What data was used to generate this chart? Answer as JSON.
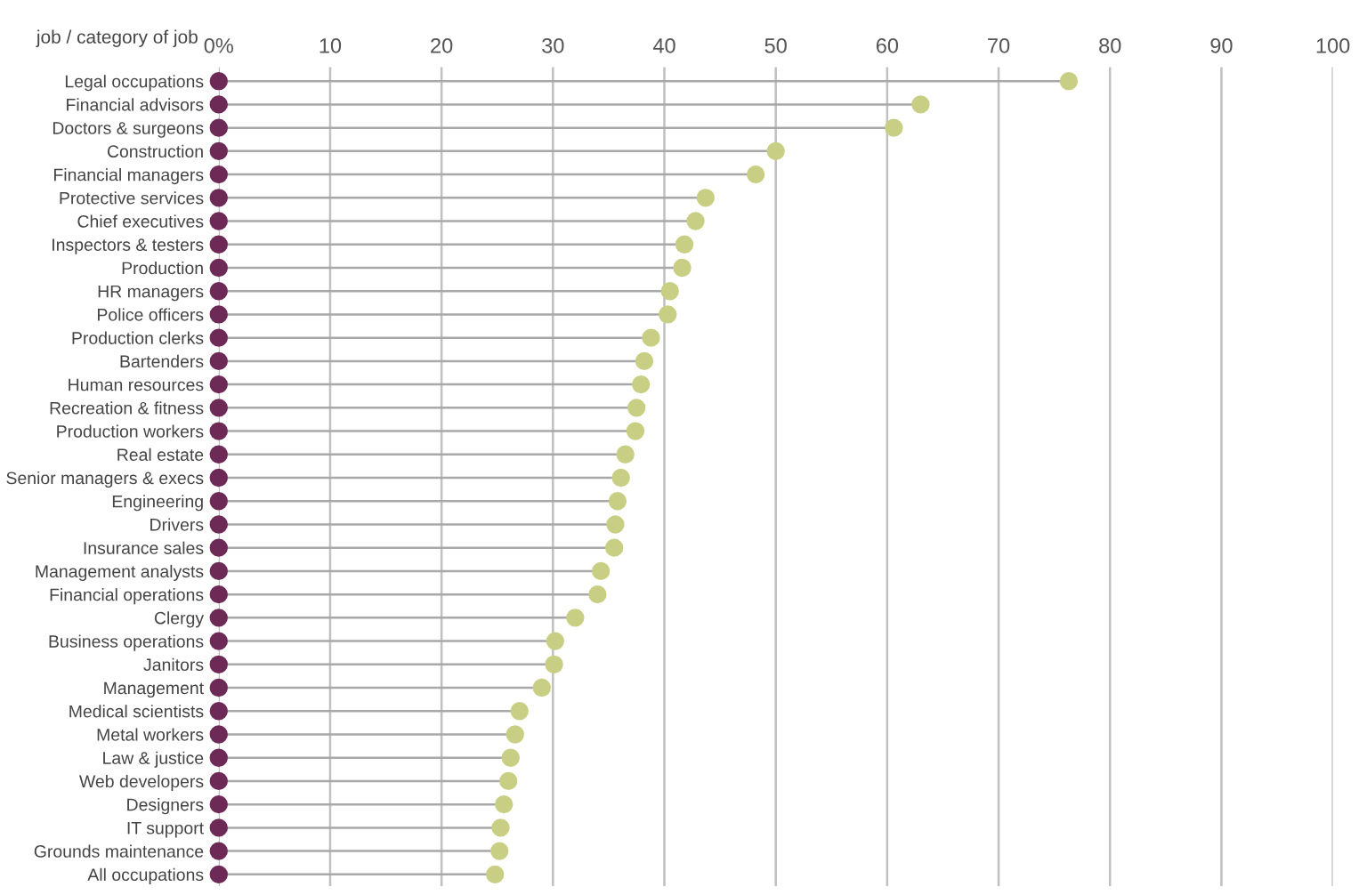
{
  "chart_data": {
    "type": "lollipop",
    "orientation": "horizontal",
    "ylabel": "job / category of job",
    "categories": [
      "Legal occupations",
      "Financial advisors",
      "Doctors & surgeons",
      "Construction",
      "Financial managers",
      "Protective services",
      "Chief executives",
      "Inspectors & testers",
      "Production",
      "HR managers",
      "Police officers",
      "Production clerks",
      "Bartenders",
      "Human resources",
      "Recreation & fitness",
      "Production workers",
      "Real estate",
      "Senior managers & execs",
      "Engineering",
      "Drivers",
      "Insurance sales",
      "Management analysts",
      "Financial operations",
      "Clergy",
      "Business operations",
      "Janitors",
      "Management",
      "Medical scientists",
      "Metal workers",
      "Law & justice",
      "Web developers",
      "Designers",
      "IT support",
      "Grounds maintenance",
      "All occupations"
    ],
    "series": [
      {
        "color": "#c8cf84",
        "values": [
          76.3,
          63.0,
          60.6,
          50.0,
          48.2,
          43.7,
          42.8,
          41.8,
          41.6,
          40.5,
          40.3,
          38.8,
          38.2,
          37.9,
          37.5,
          37.4,
          36.5,
          36.1,
          35.8,
          35.6,
          35.5,
          34.3,
          34.0,
          32.0,
          30.2,
          30.1,
          29.0,
          27.0,
          26.6,
          26.2,
          26.0,
          25.6,
          25.3,
          25.2,
          24.8
        ]
      },
      {
        "type": "scatter",
        "color": "#6e2a57",
        "values": [
          0,
          0,
          0,
          0,
          0,
          0,
          0,
          0,
          0,
          0,
          0,
          0,
          0,
          0,
          0,
          0,
          0,
          0,
          0,
          0,
          0,
          0,
          0,
          0,
          0,
          0,
          0,
          0,
          0,
          0,
          0,
          0,
          0,
          0,
          0
        ]
      }
    ],
    "xlim": [
      0,
      100
    ],
    "xticks": [
      {
        "value": 0,
        "label": "0%"
      },
      10,
      20,
      30,
      40,
      50,
      60,
      70,
      80,
      90,
      100
    ],
    "grid": "x",
    "marker": "circle",
    "legend": false
  }
}
